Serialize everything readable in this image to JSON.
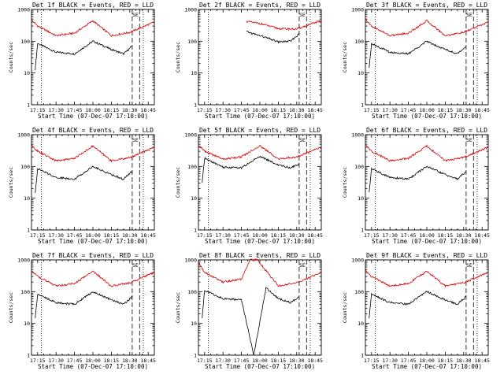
{
  "colors": {
    "events": "#000000",
    "lld": "#d10000"
  },
  "chart_data": [
    {
      "type": "line",
      "title": "Det 1f BLACK = Events, RED = LLD",
      "ylabel": "Counts/sec",
      "xlabel": "Start Time (07-Dec-07 17:10:00)",
      "x_ticks": [
        "17:15",
        "17:30",
        "17:45",
        "18:00",
        "18:15",
        "18:30",
        "18:45"
      ],
      "y_ticks": [
        "1",
        "10",
        "100",
        "1000"
      ],
      "ylim": [
        1,
        1000
      ],
      "xlim": [
        "17:10",
        "18:50"
      ],
      "y_scale": "log",
      "markers": [
        "SE"
      ],
      "series": [
        {
          "name": "Events",
          "color": "black",
          "x": [
            "17:13",
            "17:15",
            "17:30",
            "17:45",
            "18:00",
            "18:15",
            "18:25",
            "18:32"
          ],
          "y": [
            13,
            85,
            45,
            40,
            100,
            55,
            40,
            70
          ]
        },
        {
          "name": "LLD",
          "color": "red",
          "x": [
            "17:10",
            "17:15",
            "17:30",
            "17:45",
            "18:00",
            "18:15",
            "18:30",
            "18:50"
          ],
          "y": [
            470,
            300,
            150,
            180,
            440,
            150,
            190,
            400
          ]
        }
      ],
      "vlines": {
        "dotted": [
          "17:18",
          "18:41"
        ],
        "dashed": [
          "18:32",
          "18:38"
        ]
      }
    },
    {
      "type": "line",
      "title": "Det 2f BLACK = Events, RED = LLD",
      "ylabel": "Counts/sec",
      "xlabel": "Start Time (07-Dec-07 17:10:00)",
      "x_ticks": [
        "17:15",
        "17:30",
        "17:45",
        "18:00",
        "18:15",
        "18:30",
        "18:45"
      ],
      "y_ticks": [
        "1",
        "10",
        "100",
        "1000"
      ],
      "ylim": [
        1,
        1000
      ],
      "xlim": [
        "17:10",
        "18:50"
      ],
      "y_scale": "log",
      "markers": [
        "SE"
      ],
      "series": [
        {
          "name": "Events",
          "color": "black",
          "x": [
            "17:49",
            "17:55",
            "18:05",
            "18:15",
            "18:25",
            "18:32"
          ],
          "y": [
            200,
            170,
            130,
            95,
            100,
            170
          ]
        },
        {
          "name": "LLD",
          "color": "red",
          "x": [
            "17:49",
            "18:00",
            "18:15",
            "18:30",
            "18:50"
          ],
          "y": [
            420,
            360,
            250,
            240,
            450
          ]
        }
      ],
      "vlines": {
        "dotted": [
          "17:18",
          "18:41"
        ],
        "dashed": [
          "18:32",
          "18:38"
        ]
      }
    },
    {
      "type": "line",
      "title": "Det 3f BLACK = Events, RED = LLD",
      "ylabel": "Counts/sec",
      "xlabel": "Start Time (07-Dec-07 17:10:00)",
      "x_ticks": [
        "17:15",
        "17:30",
        "17:45",
        "18:00",
        "18:15",
        "18:30",
        "18:45"
      ],
      "y_ticks": [
        "1",
        "10",
        "100",
        "1000"
      ],
      "ylim": [
        1,
        1000
      ],
      "xlim": [
        "17:10",
        "18:50"
      ],
      "y_scale": "log",
      "markers": [
        "SE"
      ],
      "series": [
        {
          "name": "Events",
          "color": "black",
          "x": [
            "17:13",
            "17:15",
            "17:30",
            "17:45",
            "18:00",
            "18:15",
            "18:25",
            "18:32"
          ],
          "y": [
            15,
            85,
            45,
            40,
            100,
            55,
            40,
            70
          ]
        },
        {
          "name": "LLD",
          "color": "red",
          "x": [
            "17:10",
            "17:15",
            "17:30",
            "17:45",
            "18:00",
            "18:15",
            "18:30",
            "18:50"
          ],
          "y": [
            480,
            300,
            150,
            180,
            440,
            150,
            190,
            400
          ]
        }
      ],
      "vlines": {
        "dotted": [
          "17:18",
          "18:41"
        ],
        "dashed": [
          "18:32",
          "18:38"
        ]
      }
    },
    {
      "type": "line",
      "title": "Det 4f BLACK = Events, RED = LLD",
      "ylabel": "Counts/sec",
      "xlabel": "Start Time (07-Dec-07 17:10:00)",
      "x_ticks": [
        "17:15",
        "17:30",
        "17:45",
        "18:00",
        "18:15",
        "18:30",
        "18:45"
      ],
      "y_ticks": [
        "1",
        "10",
        "100",
        "1000"
      ],
      "ylim": [
        1,
        1000
      ],
      "xlim": [
        "17:10",
        "18:50"
      ],
      "y_scale": "log",
      "markers": [
        "SE"
      ],
      "series": [
        {
          "name": "Events",
          "color": "black",
          "x": [
            "17:13",
            "17:15",
            "17:30",
            "17:45",
            "18:00",
            "18:15",
            "18:25",
            "18:32"
          ],
          "y": [
            15,
            85,
            45,
            40,
            100,
            55,
            40,
            70
          ]
        },
        {
          "name": "LLD",
          "color": "red",
          "x": [
            "17:10",
            "17:15",
            "17:30",
            "17:45",
            "18:00",
            "18:15",
            "18:30",
            "18:50"
          ],
          "y": [
            460,
            300,
            150,
            180,
            440,
            150,
            190,
            400
          ]
        }
      ],
      "vlines": {
        "dotted": [
          "17:18",
          "18:41"
        ],
        "dashed": [
          "18:32",
          "18:38"
        ]
      }
    },
    {
      "type": "line",
      "title": "Det 5f BLACK = Events, RED = LLD",
      "ylabel": "Counts/sec",
      "xlabel": "Start Time (07-Dec-07 17:10:00)",
      "x_ticks": [
        "17:15",
        "17:30",
        "17:45",
        "18:00",
        "18:15",
        "18:30",
        "18:45"
      ],
      "y_ticks": [
        "1",
        "10",
        "100",
        "1000"
      ],
      "ylim": [
        1,
        1000
      ],
      "xlim": [
        "17:10",
        "18:50"
      ],
      "y_scale": "log",
      "markers": [
        "SE"
      ],
      "series": [
        {
          "name": "Events",
          "color": "black",
          "x": [
            "17:13",
            "17:15",
            "17:30",
            "17:45",
            "18:00",
            "18:15",
            "18:25",
            "18:32"
          ],
          "y": [
            30,
            180,
            95,
            90,
            210,
            110,
            90,
            120
          ]
        },
        {
          "name": "LLD",
          "color": "red",
          "x": [
            "17:10",
            "17:15",
            "17:30",
            "17:45",
            "18:00",
            "18:15",
            "18:30",
            "18:50"
          ],
          "y": [
            480,
            300,
            170,
            200,
            450,
            170,
            200,
            400
          ]
        }
      ],
      "vlines": {
        "dotted": [
          "17:18",
          "18:41"
        ],
        "dashed": [
          "18:32",
          "18:38"
        ]
      }
    },
    {
      "type": "line",
      "title": "Det 6f BLACK = Events, RED = LLD",
      "ylabel": "Counts/sec",
      "xlabel": "Start Time (07-Dec-07 17:10:00)",
      "x_ticks": [
        "17:15",
        "17:30",
        "17:45",
        "18:00",
        "18:15",
        "18:30",
        "18:45"
      ],
      "y_ticks": [
        "1",
        "10",
        "100",
        "1000"
      ],
      "ylim": [
        1,
        1000
      ],
      "xlim": [
        "17:10",
        "18:50"
      ],
      "y_scale": "log",
      "markers": [
        "SE"
      ],
      "series": [
        {
          "name": "Events",
          "color": "black",
          "x": [
            "17:13",
            "17:15",
            "17:30",
            "17:45",
            "18:00",
            "18:15",
            "18:25",
            "18:32"
          ],
          "y": [
            15,
            85,
            45,
            40,
            100,
            55,
            40,
            70
          ]
        },
        {
          "name": "LLD",
          "color": "red",
          "x": [
            "17:10",
            "17:15",
            "17:30",
            "17:45",
            "18:00",
            "18:15",
            "18:30",
            "18:50"
          ],
          "y": [
            470,
            300,
            150,
            180,
            440,
            150,
            190,
            400
          ]
        }
      ],
      "vlines": {
        "dotted": [
          "17:18",
          "18:41"
        ],
        "dashed": [
          "18:32",
          "18:38"
        ]
      }
    },
    {
      "type": "line",
      "title": "Det 7f BLACK = Events, RED = LLD",
      "ylabel": "Counts/sec",
      "xlabel": "Start Time (07-Dec-07 17:10:00)",
      "x_ticks": [
        "17:15",
        "17:30",
        "17:45",
        "18:00",
        "18:15",
        "18:30",
        "18:45"
      ],
      "y_ticks": [
        "1",
        "10",
        "100",
        "1000"
      ],
      "ylim": [
        1,
        1000
      ],
      "xlim": [
        "17:10",
        "18:50"
      ],
      "y_scale": "log",
      "markers": [
        "SE"
      ],
      "series": [
        {
          "name": "Events",
          "color": "black",
          "x": [
            "17:13",
            "17:15",
            "17:30",
            "17:45",
            "18:00",
            "18:15",
            "18:25",
            "18:32"
          ],
          "y": [
            15,
            85,
            45,
            40,
            100,
            55,
            40,
            70
          ]
        },
        {
          "name": "LLD",
          "color": "red",
          "x": [
            "17:10",
            "17:15",
            "17:30",
            "17:45",
            "18:00",
            "18:15",
            "18:30",
            "18:50"
          ],
          "y": [
            470,
            300,
            150,
            180,
            440,
            150,
            190,
            400
          ]
        }
      ],
      "vlines": {
        "dotted": [
          "17:18",
          "18:41"
        ],
        "dashed": [
          "18:32",
          "18:38"
        ]
      }
    },
    {
      "type": "line",
      "title": "Det 8f BLACK = Events, RED = LLD",
      "ylabel": "Counts/sec",
      "xlabel": "Start Time (07-Dec-07 17:10:00)",
      "x_ticks": [
        "17:15",
        "17:30",
        "17:45",
        "18:00",
        "18:15",
        "18:30",
        "18:45"
      ],
      "y_ticks": [
        "1",
        "10",
        "100",
        "1000"
      ],
      "ylim": [
        1,
        1000
      ],
      "xlim": [
        "17:10",
        "18:50"
      ],
      "y_scale": "log",
      "markers": [
        "SE"
      ],
      "series": [
        {
          "name": "Events",
          "color": "black",
          "x": [
            "17:13",
            "17:15",
            "17:30",
            "17:45",
            "17:55",
            "18:05",
            "18:15",
            "18:25",
            "18:32"
          ],
          "y": [
            15,
            110,
            60,
            55,
            1,
            130,
            60,
            45,
            70
          ]
        },
        {
          "name": "LLD",
          "color": "red",
          "x": [
            "17:10",
            "17:15",
            "17:30",
            "17:45",
            "17:52",
            "17:58",
            "18:15",
            "18:30",
            "18:50"
          ],
          "y": [
            800,
            400,
            200,
            250,
            1000,
            1000,
            150,
            190,
            400
          ]
        }
      ],
      "vlines": {
        "dotted": [
          "17:18",
          "18:41"
        ],
        "dashed": [
          "18:32",
          "18:38"
        ]
      }
    },
    {
      "type": "line",
      "title": "Det 9f BLACK = Events, RED = LLD",
      "ylabel": "Counts/sec",
      "xlabel": "Start Time (07-Dec-07 17:10:00)",
      "x_ticks": [
        "17:15",
        "17:30",
        "17:45",
        "18:00",
        "18:15",
        "18:30",
        "18:45"
      ],
      "y_ticks": [
        "1",
        "10",
        "100",
        "1000"
      ],
      "ylim": [
        1,
        1000
      ],
      "xlim": [
        "17:10",
        "18:50"
      ],
      "y_scale": "log",
      "markers": [
        "SE"
      ],
      "series": [
        {
          "name": "Events",
          "color": "black",
          "x": [
            "17:13",
            "17:15",
            "17:30",
            "17:45",
            "18:00",
            "18:15",
            "18:25",
            "18:32"
          ],
          "y": [
            15,
            85,
            45,
            40,
            100,
            55,
            40,
            70
          ]
        },
        {
          "name": "LLD",
          "color": "red",
          "x": [
            "17:10",
            "17:15",
            "17:30",
            "17:45",
            "18:00",
            "18:15",
            "18:30",
            "18:50"
          ],
          "y": [
            470,
            300,
            150,
            180,
            440,
            150,
            190,
            400
          ]
        }
      ],
      "vlines": {
        "dotted": [
          "17:18",
          "18:41"
        ],
        "dashed": [
          "18:32",
          "18:38"
        ]
      }
    }
  ]
}
